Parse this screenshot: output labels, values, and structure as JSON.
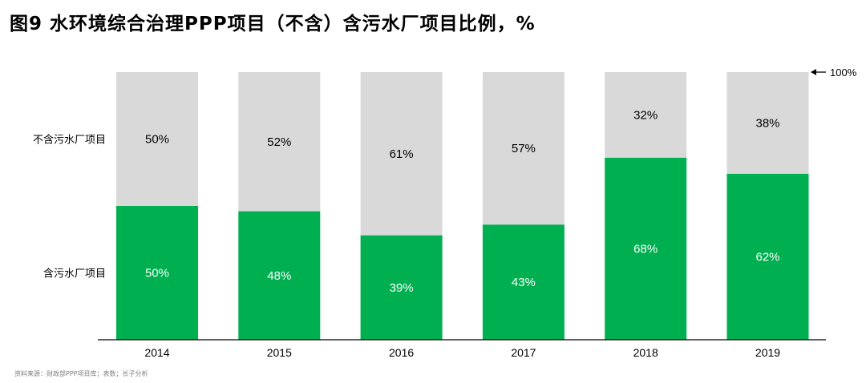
{
  "title": "图9 水环境综合治理PPP项目（不含）含污水厂项目比例，%",
  "source": "资料来源：财政部PPP项目库；表数；长子分析",
  "hundred_marker": "100%",
  "colors": {
    "top_segment": "#d9d9d9",
    "bottom_segment": "#00b050",
    "axis": "#000000"
  },
  "chart_data": {
    "type": "bar",
    "stacked": true,
    "percent_stacked": true,
    "title": "图9 水环境综合治理PPP项目（不含）含污水厂项目比例，%",
    "categories": [
      "2014",
      "2015",
      "2016",
      "2017",
      "2018",
      "2019"
    ],
    "series": [
      {
        "name": "含污水厂项目",
        "values": [
          50,
          48,
          39,
          43,
          68,
          62
        ],
        "labels": [
          "50%",
          "48%",
          "39%",
          "43%",
          "68%",
          "62%"
        ],
        "color": "#00b050"
      },
      {
        "name": "不含污水厂项目",
        "values": [
          50,
          52,
          61,
          57,
          32,
          38
        ],
        "labels": [
          "50%",
          "52%",
          "61%",
          "57%",
          "32%",
          "38%"
        ],
        "color": "#d9d9d9"
      }
    ],
    "ylim": [
      0,
      100
    ],
    "grid": false,
    "legend": "left row labels"
  }
}
